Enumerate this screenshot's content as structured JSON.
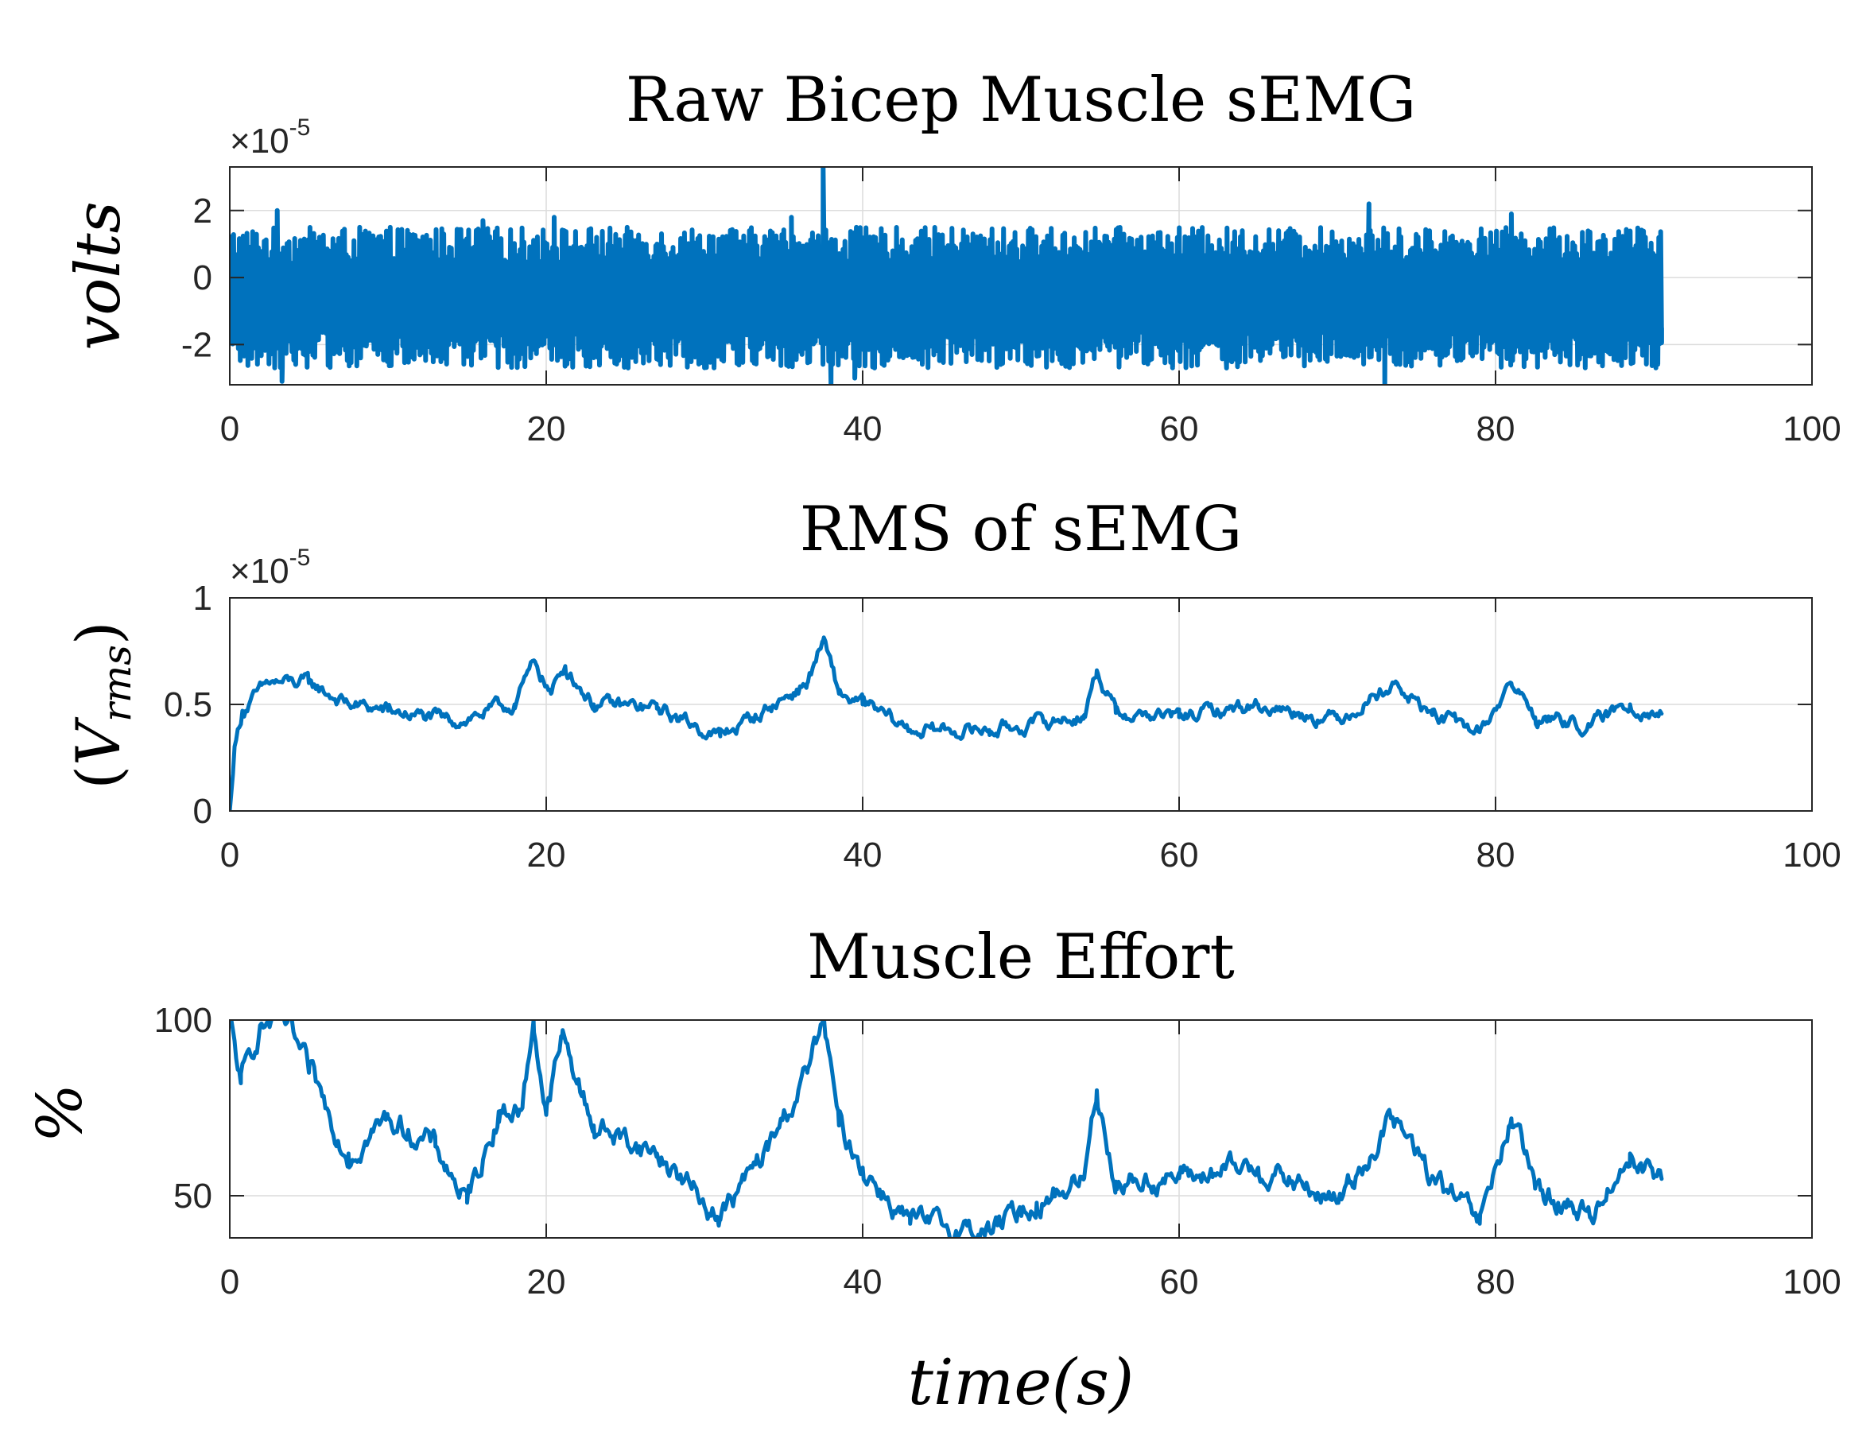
{
  "chart_data": [
    {
      "type": "line",
      "title": "Raw Bicep Muscle sEMG",
      "ylabel": "volts",
      "xlabel": "",
      "exponent_label": "×10",
      "exponent_power": "-5",
      "xlim": [
        0,
        100
      ],
      "ylim": [
        -3.2,
        3.3
      ],
      "xticks": [
        0,
        20,
        40,
        60,
        80,
        100
      ],
      "xtick_labels": [
        "0",
        "20",
        "40",
        "60",
        "80",
        "100"
      ],
      "yticks": [
        -2,
        0,
        2
      ],
      "ytick_labels": [
        "-2",
        "0",
        "2"
      ],
      "grid": true,
      "color": "#0072BD",
      "line_width": 6,
      "noise": {
        "kind": "raw",
        "t_end": 90.5,
        "n": 1500,
        "center": -0.6,
        "spread": 2.0
      },
      "key_points": [
        {
          "x": 0.0,
          "y": -1.0
        },
        {
          "x": 3.0,
          "y": 2.0
        },
        {
          "x": 3.3,
          "y": -3.1
        },
        {
          "x": 16.0,
          "y": 1.7
        },
        {
          "x": 20.5,
          "y": 1.8
        },
        {
          "x": 27.0,
          "y": 1.0
        },
        {
          "x": 35.5,
          "y": 1.8
        },
        {
          "x": 37.5,
          "y": 3.3
        },
        {
          "x": 38.0,
          "y": -3.2
        },
        {
          "x": 39.5,
          "y": -3.0
        },
        {
          "x": 55.0,
          "y": 1.0
        },
        {
          "x": 63.0,
          "y": -2.7
        },
        {
          "x": 72.0,
          "y": 2.2
        },
        {
          "x": 73.0,
          "y": -3.2
        },
        {
          "x": 81.0,
          "y": 1.9
        },
        {
          "x": 90.5,
          "y": -1.5
        }
      ]
    },
    {
      "type": "line",
      "title": "RMS of sEMG",
      "ylabel": "(V_rms)",
      "ylabel_main": "V",
      "ylabel_sub": "rms",
      "xlabel": "",
      "exponent_label": "×10",
      "exponent_power": "-5",
      "xlim": [
        0,
        100
      ],
      "ylim": [
        0,
        1
      ],
      "xticks": [
        0,
        20,
        40,
        60,
        80,
        100
      ],
      "xtick_labels": [
        "0",
        "20",
        "40",
        "60",
        "80",
        "100"
      ],
      "yticks": [
        0,
        0.5,
        1
      ],
      "ytick_labels": [
        "0",
        "0.5",
        "1"
      ],
      "grid": true,
      "color": "#0072BD",
      "line_width": 5,
      "noise": {
        "kind": "smooth",
        "amp": 0.035,
        "n": 900
      },
      "key_points": [
        {
          "x": 0.0,
          "y": 0.0
        },
        {
          "x": 0.3,
          "y": 0.3
        },
        {
          "x": 0.8,
          "y": 0.47
        },
        {
          "x": 2.5,
          "y": 0.6
        },
        {
          "x": 5.0,
          "y": 0.6
        },
        {
          "x": 7.5,
          "y": 0.5
        },
        {
          "x": 10.0,
          "y": 0.47
        },
        {
          "x": 14.0,
          "y": 0.42
        },
        {
          "x": 18.0,
          "y": 0.5
        },
        {
          "x": 19.3,
          "y": 0.7
        },
        {
          "x": 20.3,
          "y": 0.55
        },
        {
          "x": 21.2,
          "y": 0.68
        },
        {
          "x": 23.0,
          "y": 0.5
        },
        {
          "x": 27.0,
          "y": 0.48
        },
        {
          "x": 31.0,
          "y": 0.35
        },
        {
          "x": 34.0,
          "y": 0.48
        },
        {
          "x": 36.5,
          "y": 0.6
        },
        {
          "x": 37.5,
          "y": 0.8
        },
        {
          "x": 38.5,
          "y": 0.55
        },
        {
          "x": 40.0,
          "y": 0.5
        },
        {
          "x": 43.0,
          "y": 0.38
        },
        {
          "x": 48.0,
          "y": 0.38
        },
        {
          "x": 52.0,
          "y": 0.42
        },
        {
          "x": 54.0,
          "y": 0.45
        },
        {
          "x": 54.8,
          "y": 0.66
        },
        {
          "x": 56.0,
          "y": 0.46
        },
        {
          "x": 60.0,
          "y": 0.44
        },
        {
          "x": 65.0,
          "y": 0.5
        },
        {
          "x": 70.0,
          "y": 0.43
        },
        {
          "x": 73.5,
          "y": 0.6
        },
        {
          "x": 76.0,
          "y": 0.45
        },
        {
          "x": 79.0,
          "y": 0.37
        },
        {
          "x": 81.0,
          "y": 0.6
        },
        {
          "x": 82.5,
          "y": 0.44
        },
        {
          "x": 86.0,
          "y": 0.4
        },
        {
          "x": 88.5,
          "y": 0.5
        },
        {
          "x": 90.5,
          "y": 0.46
        }
      ]
    },
    {
      "type": "line",
      "title": "Muscle Effort",
      "ylabel": "%",
      "xlabel": "time(s)",
      "xlim": [
        0,
        100
      ],
      "ylim": [
        38,
        100
      ],
      "xticks": [
        0,
        20,
        40,
        60,
        80,
        100
      ],
      "xtick_labels": [
        "0",
        "20",
        "40",
        "60",
        "80",
        "100"
      ],
      "yticks": [
        50,
        100
      ],
      "ytick_labels": [
        "50",
        "100"
      ],
      "grid": true,
      "color": "#0072BD",
      "line_width": 5,
      "noise": {
        "kind": "smooth",
        "amp": 3.5,
        "n": 900
      },
      "key_points": [
        {
          "x": 0.0,
          "y": 100
        },
        {
          "x": 0.7,
          "y": 82
        },
        {
          "x": 2.0,
          "y": 99
        },
        {
          "x": 3.5,
          "y": 99
        },
        {
          "x": 5.0,
          "y": 85
        },
        {
          "x": 7.5,
          "y": 62
        },
        {
          "x": 10.0,
          "y": 72
        },
        {
          "x": 13.0,
          "y": 64
        },
        {
          "x": 15.0,
          "y": 48
        },
        {
          "x": 17.0,
          "y": 74
        },
        {
          "x": 18.5,
          "y": 75
        },
        {
          "x": 19.2,
          "y": 100
        },
        {
          "x": 20.0,
          "y": 73
        },
        {
          "x": 21.0,
          "y": 95
        },
        {
          "x": 23.0,
          "y": 70
        },
        {
          "x": 27.0,
          "y": 62
        },
        {
          "x": 31.0,
          "y": 44
        },
        {
          "x": 34.0,
          "y": 63
        },
        {
          "x": 36.5,
          "y": 85
        },
        {
          "x": 37.5,
          "y": 100
        },
        {
          "x": 38.5,
          "y": 70
        },
        {
          "x": 40.0,
          "y": 58
        },
        {
          "x": 43.0,
          "y": 42
        },
        {
          "x": 48.0,
          "y": 40
        },
        {
          "x": 51.0,
          "y": 48
        },
        {
          "x": 54.0,
          "y": 55
        },
        {
          "x": 54.8,
          "y": 80
        },
        {
          "x": 56.0,
          "y": 54
        },
        {
          "x": 60.0,
          "y": 55
        },
        {
          "x": 65.0,
          "y": 58
        },
        {
          "x": 70.0,
          "y": 48
        },
        {
          "x": 73.5,
          "y": 72
        },
        {
          "x": 76.0,
          "y": 55
        },
        {
          "x": 79.0,
          "y": 42
        },
        {
          "x": 81.0,
          "y": 72
        },
        {
          "x": 82.5,
          "y": 52
        },
        {
          "x": 86.0,
          "y": 44
        },
        {
          "x": 88.5,
          "y": 62
        },
        {
          "x": 90.5,
          "y": 55
        }
      ]
    }
  ]
}
